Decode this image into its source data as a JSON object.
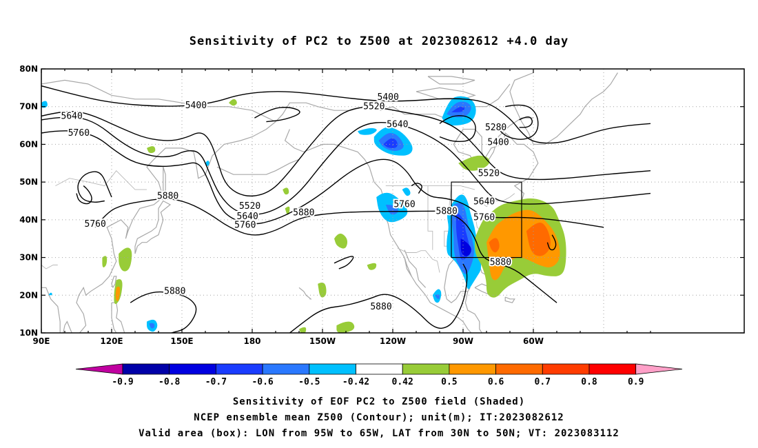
{
  "title": "Sensitivity of PC2 to Z500 at 2023082612 +4.0 day",
  "footer": {
    "line1": "Sensitivity of EOF PC2 to Z500 field (Shaded)",
    "line2": "NCEP ensemble mean Z500 (Contour); unit(m); IT:2023082612",
    "line3": "Valid area (box): LON from 95W to 65W, LAT from 30N to 50N; VT: 2023083112"
  },
  "axes": {
    "lon_ticks": [
      "90E",
      "120E",
      "150E",
      "180",
      "150W",
      "120W",
      "90W",
      "60W"
    ],
    "lat_ticks": [
      "80N",
      "70N",
      "60N",
      "50N",
      "40N",
      "30N",
      "20N",
      "10N"
    ]
  },
  "valid_box": {
    "lon_west": "95W",
    "lon_east": "65W",
    "lat_south": "30N",
    "lat_north": "50N"
  },
  "contour_labels": [
    {
      "text": "5400",
      "lon": 156,
      "lat": 70.3
    },
    {
      "text": "5400",
      "lon": -122,
      "lat": 72.5
    },
    {
      "text": "5400",
      "lon": -75,
      "lat": 60.5
    },
    {
      "text": "5280",
      "lon": -76,
      "lat": 64.5
    },
    {
      "text": "5520",
      "lon": -128,
      "lat": 70.0
    },
    {
      "text": "5520",
      "lon": -79,
      "lat": 52.3
    },
    {
      "text": "5520",
      "lon": 179,
      "lat": 43.6
    },
    {
      "text": "5640",
      "lon": 103,
      "lat": 67.5
    },
    {
      "text": "5640",
      "lon": -118,
      "lat": 65.3
    },
    {
      "text": "5640",
      "lon": 178,
      "lat": 40.9
    },
    {
      "text": "5640",
      "lon": -81,
      "lat": 44.8
    },
    {
      "text": "5760",
      "lon": 106,
      "lat": 63.0
    },
    {
      "text": "5760",
      "lon": 113,
      "lat": 38.9
    },
    {
      "text": "5760",
      "lon": 177,
      "lat": 38.6
    },
    {
      "text": "5760",
      "lon": -115,
      "lat": 44.1
    },
    {
      "text": "5760",
      "lon": -81,
      "lat": 40.6
    },
    {
      "text": "5880",
      "lon": 144,
      "lat": 46.3
    },
    {
      "text": "5880",
      "lon": -158,
      "lat": 41.9
    },
    {
      "text": "5880",
      "lon": -97,
      "lat": 42.3
    },
    {
      "text": "5880",
      "lon": -74,
      "lat": 28.7
    },
    {
      "text": "5880",
      "lon": 147,
      "lat": 21.1
    },
    {
      "text": "5880",
      "lon": -125,
      "lat": 16.9
    }
  ],
  "colorbar": {
    "labels": [
      "-0.9",
      "-0.8",
      "-0.7",
      "-0.6",
      "-0.5",
      "-0.42",
      "0.42",
      "0.5",
      "0.6",
      "0.7",
      "0.8",
      "0.9"
    ],
    "colors": [
      "#c000a0",
      "#0000a8",
      "#0000e0",
      "#1a3cff",
      "#2a78ff",
      "#00c0ff",
      "#ffffff",
      "#98cc38",
      "#ff9800",
      "#ff6a00",
      "#ff3c00",
      "#ff0000",
      "#ffa0c8"
    ]
  },
  "legend": {
    "shaded": "Sensitivity of EOF PC2 to Z500 field",
    "contour": "NCEP ensemble mean Z500"
  }
}
